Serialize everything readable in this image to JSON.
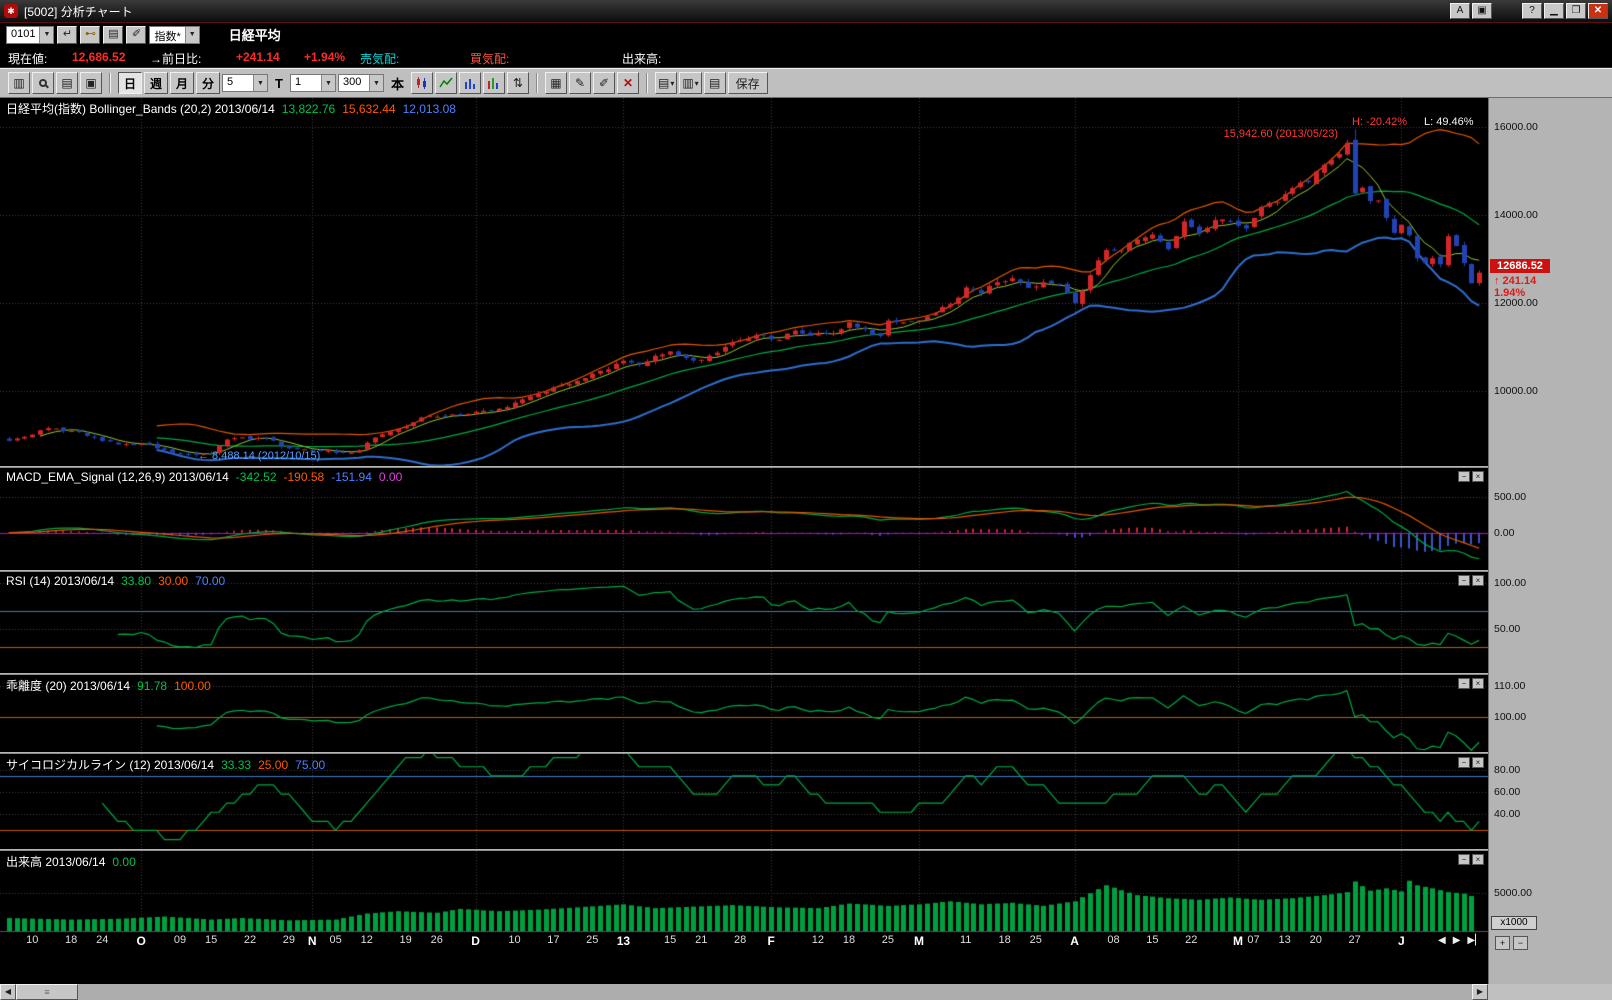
{
  "window": {
    "title": "[5002] 分析チャート",
    "btn_a": "A",
    "btn_help": "?"
  },
  "toolbar1": {
    "code": "0101",
    "category": "指数*",
    "instrument": "日経平均"
  },
  "quote": {
    "current_label": "現在値:",
    "current": "12,686.52",
    "change_label": "→前日比:",
    "change": "+241.14",
    "change_pct": "+1.94%",
    "ask_label": "売気配:",
    "bid_label": "買気配:",
    "volume_label": "出来高:"
  },
  "toolbar2": {
    "day": "日",
    "week": "週",
    "month": "月",
    "minute": "分",
    "interval": "5",
    "t": "T",
    "bars": "1",
    "range": "300",
    "unit": "本",
    "save": "保存"
  },
  "headers": {
    "main": {
      "name": "日経平均(指数) Bollinger_Bands (20,2) 2013/06/14",
      "v1": "13,822.76",
      "v2": "15,632.44",
      "v3": "12,013.08"
    },
    "macd": {
      "name": "MACD_EMA_Signal (12,26,9) 2013/06/14",
      "v1": "-342.52",
      "v2": "-190.58",
      "v3": "-151.94",
      "v4": "0.00"
    },
    "rsi": {
      "name": "RSI (14) 2013/06/14",
      "v1": "33.80",
      "v2": "30.00",
      "v3": "70.00"
    },
    "kairi": {
      "name": "乖離度 (20) 2013/06/14",
      "v1": "91.78",
      "v2": "100.00"
    },
    "psycho": {
      "name": "サイコロジカルライン (12) 2013/06/14",
      "v1": "33.33",
      "v2": "25.00",
      "v3": "75.00"
    },
    "volume": {
      "name": "出来高 2013/06/14",
      "v1": "0.00"
    }
  },
  "annotations": {
    "peak": "15,942.60 (2013/05/23)",
    "low": "← 8,488.14 (2012/10/15)",
    "high_pct": "H: -20.42%",
    "low_pct": "L: 49.46%"
  },
  "price_tag": {
    "value": "12686.52",
    "change": "↑ 241.14",
    "pct": "1.94%"
  },
  "panels": [
    {
      "id": "main",
      "ymin": 8300,
      "ymax": 16650,
      "grid": [
        16000,
        14000,
        12000,
        10000
      ],
      "labels": [
        "16000.00",
        "14000.00",
        "12000.00",
        "10000.00"
      ]
    },
    {
      "id": "macd",
      "ymin": -520,
      "ymax": 900,
      "grid": [
        500,
        0
      ],
      "labels": [
        "500.00",
        "0.00"
      ]
    },
    {
      "id": "rsi",
      "ymin": 2,
      "ymax": 112,
      "grid": [
        100,
        50
      ],
      "labels": [
        "100.00",
        "50.00"
      ],
      "hlines": [
        {
          "v": 70,
          "c": "#3b78c2"
        },
        {
          "v": 30,
          "c": "#c25a00"
        }
      ]
    },
    {
      "id": "kairi",
      "ymin": 89,
      "ymax": 113.5,
      "grid": [
        110,
        100
      ],
      "labels": [
        "110.00",
        "100.00"
      ],
      "hlines": [
        {
          "v": 100,
          "c": "#c25a00"
        }
      ]
    },
    {
      "id": "psycho",
      "ymin": 8,
      "ymax": 95,
      "grid": [
        80,
        60,
        40
      ],
      "labels": [
        "80.00",
        "60.00",
        "40.00"
      ],
      "hlines": [
        {
          "v": 75,
          "c": "#3b78c2"
        },
        {
          "v": 25,
          "c": "#c25a00"
        }
      ]
    },
    {
      "id": "volume",
      "ymin": 0,
      "ymax": 10500,
      "grid": [
        5000
      ],
      "labels": [
        "5000.00"
      ],
      "unit": "x1000"
    }
  ],
  "xaxis": {
    "labels": [
      [
        "10",
        3
      ],
      [
        "18",
        8
      ],
      [
        "24",
        12
      ],
      [
        "O",
        17,
        1
      ],
      [
        "09",
        22
      ],
      [
        "15",
        26
      ],
      [
        "22",
        31
      ],
      [
        "29",
        36
      ],
      [
        "N",
        39,
        1
      ],
      [
        "05",
        42
      ],
      [
        "12",
        46
      ],
      [
        "19",
        51
      ],
      [
        "26",
        55
      ],
      [
        "D",
        60,
        1
      ],
      [
        "10",
        65
      ],
      [
        "17",
        70
      ],
      [
        "25",
        75
      ],
      [
        "13",
        79,
        1
      ],
      [
        "15",
        85
      ],
      [
        "21",
        89
      ],
      [
        "28",
        94
      ],
      [
        "F",
        98,
        1
      ],
      [
        "12",
        104
      ],
      [
        "18",
        108
      ],
      [
        "25",
        113
      ],
      [
        "M",
        117,
        1
      ],
      [
        "11",
        123
      ],
      [
        "18",
        128
      ],
      [
        "25",
        132
      ],
      [
        "A",
        137,
        1
      ],
      [
        "08",
        142
      ],
      [
        "15",
        147
      ],
      [
        "22",
        152
      ],
      [
        "M",
        158,
        1
      ],
      [
        "07",
        160
      ],
      [
        "13",
        164
      ],
      [
        "20",
        168
      ],
      [
        "27",
        173
      ],
      [
        "J",
        179,
        1
      ]
    ],
    "month_days": [
      17,
      39,
      60,
      79,
      98,
      117,
      137,
      158,
      179
    ]
  },
  "chart_data": {
    "type": "candlestick",
    "title": "日経平均(指数)",
    "date": "2013/06/14",
    "days": 190,
    "close_anchors": [
      [
        0,
        8870
      ],
      [
        3,
        9010
      ],
      [
        5,
        9160
      ],
      [
        9,
        9070
      ],
      [
        12,
        8870
      ],
      [
        14,
        8790
      ],
      [
        17,
        8810
      ],
      [
        19,
        8700
      ],
      [
        21,
        8600
      ],
      [
        23,
        8577
      ],
      [
        26,
        8580
      ],
      [
        28,
        8900
      ],
      [
        30,
        8950
      ],
      [
        33,
        8930
      ],
      [
        36,
        8700
      ],
      [
        38,
        8680
      ],
      [
        41,
        8660
      ],
      [
        43,
        8600
      ],
      [
        45,
        8660
      ],
      [
        46,
        8830
      ],
      [
        48,
        9020
      ],
      [
        50,
        9150
      ],
      [
        53,
        9400
      ],
      [
        55,
        9420
      ],
      [
        58,
        9460
      ],
      [
        60,
        9530
      ],
      [
        63,
        9600
      ],
      [
        65,
        9740
      ],
      [
        68,
        9940
      ],
      [
        70,
        10080
      ],
      [
        73,
        10230
      ],
      [
        75,
        10395
      ],
      [
        77,
        10490
      ],
      [
        79,
        10688
      ],
      [
        81,
        10600
      ],
      [
        83,
        10800
      ],
      [
        85,
        10900
      ],
      [
        87,
        10750
      ],
      [
        89,
        10710
      ],
      [
        91,
        10870
      ],
      [
        93,
        11100
      ],
      [
        95,
        11190
      ],
      [
        97,
        11260
      ],
      [
        99,
        11160
      ],
      [
        101,
        11370
      ],
      [
        103,
        11250
      ],
      [
        105,
        11300
      ],
      [
        107,
        11400
      ],
      [
        108,
        11560
      ],
      [
        110,
        11400
      ],
      [
        112,
        11250
      ],
      [
        113,
        11600
      ],
      [
        115,
        11560
      ],
      [
        117,
        11600
      ],
      [
        119,
        11770
      ],
      [
        121,
        11970
      ],
      [
        123,
        12350
      ],
      [
        125,
        12220
      ],
      [
        127,
        12470
      ],
      [
        129,
        12560
      ],
      [
        131,
        12340
      ],
      [
        133,
        12470
      ],
      [
        135,
        12400
      ],
      [
        137,
        12000
      ],
      [
        139,
        12630
      ],
      [
        141,
        13200
      ],
      [
        143,
        13190
      ],
      [
        145,
        13440
      ],
      [
        147,
        13550
      ],
      [
        149,
        13220
      ],
      [
        151,
        13850
      ],
      [
        153,
        13570
      ],
      [
        155,
        13880
      ],
      [
        157,
        13860
      ],
      [
        159,
        13690
      ],
      [
        161,
        14180
      ],
      [
        163,
        14285
      ],
      [
        165,
        14607
      ],
      [
        167,
        14738
      ],
      [
        169,
        15138
      ],
      [
        171,
        15381
      ],
      [
        172,
        15627
      ],
      [
        173,
        14483
      ],
      [
        174,
        14612
      ],
      [
        175,
        14311
      ],
      [
        176,
        14326
      ],
      [
        177,
        13930
      ],
      [
        178,
        13589
      ],
      [
        179,
        13774
      ],
      [
        180,
        13533
      ],
      [
        181,
        13012
      ],
      [
        182,
        12904
      ],
      [
        183,
        13014
      ],
      [
        184,
        12877
      ],
      [
        185,
        13514
      ],
      [
        186,
        13289
      ],
      [
        187,
        12904
      ],
      [
        188,
        12445
      ],
      [
        189,
        12686.52
      ]
    ],
    "volume_anchors": [
      [
        0,
        1700
      ],
      [
        8,
        1500
      ],
      [
        14,
        1600
      ],
      [
        20,
        1900
      ],
      [
        26,
        1500
      ],
      [
        30,
        1700
      ],
      [
        36,
        1400
      ],
      [
        42,
        1500
      ],
      [
        46,
        2300
      ],
      [
        50,
        2600
      ],
      [
        55,
        2400
      ],
      [
        58,
        2900
      ],
      [
        63,
        2600
      ],
      [
        68,
        2800
      ],
      [
        73,
        3100
      ],
      [
        79,
        3500
      ],
      [
        83,
        3000
      ],
      [
        88,
        3200
      ],
      [
        93,
        3400
      ],
      [
        99,
        3100
      ],
      [
        104,
        3000
      ],
      [
        108,
        3600
      ],
      [
        113,
        3300
      ],
      [
        117,
        3500
      ],
      [
        121,
        3900
      ],
      [
        125,
        3500
      ],
      [
        129,
        3700
      ],
      [
        133,
        3300
      ],
      [
        137,
        3900
      ],
      [
        141,
        6000
      ],
      [
        145,
        4700
      ],
      [
        149,
        4300
      ],
      [
        153,
        4100
      ],
      [
        157,
        4400
      ],
      [
        161,
        4100
      ],
      [
        165,
        4300
      ],
      [
        169,
        4700
      ],
      [
        172,
        5100
      ],
      [
        173,
        6500
      ],
      [
        175,
        5300
      ],
      [
        177,
        5600
      ],
      [
        179,
        5200
      ],
      [
        180,
        6600
      ],
      [
        181,
        6000
      ],
      [
        183,
        5600
      ],
      [
        185,
        5100
      ],
      [
        187,
        4900
      ],
      [
        188,
        4600
      ],
      [
        189,
        0
      ]
    ],
    "special": {
      "low_day": 23,
      "low": 8488.14,
      "peak_day": 173,
      "peak_open": 15700,
      "peak_high": 15942.6,
      "last_open": 12450,
      "last_low": 12390,
      "last_high": 12740
    },
    "indicators": {
      "bollinger": {
        "period": 20,
        "sigma": 2,
        "mid": 13822.76,
        "upper": 15632.44,
        "lower": 12013.08
      },
      "macd": {
        "fast": 12,
        "slow": 26,
        "signal": 9,
        "macd": -342.52,
        "sig": -190.58,
        "hist": -151.94,
        "zero": 0.0
      },
      "rsi": {
        "period": 14,
        "value": 33.8,
        "lower": 30,
        "upper": 70
      },
      "kairi": {
        "period": 20,
        "value": 91.78,
        "base": 100
      },
      "psychological": {
        "period": 12,
        "value": 33.33,
        "lower": 25,
        "upper": 75
      },
      "volume": {
        "value": 0.0,
        "unit": "x1000"
      }
    }
  }
}
